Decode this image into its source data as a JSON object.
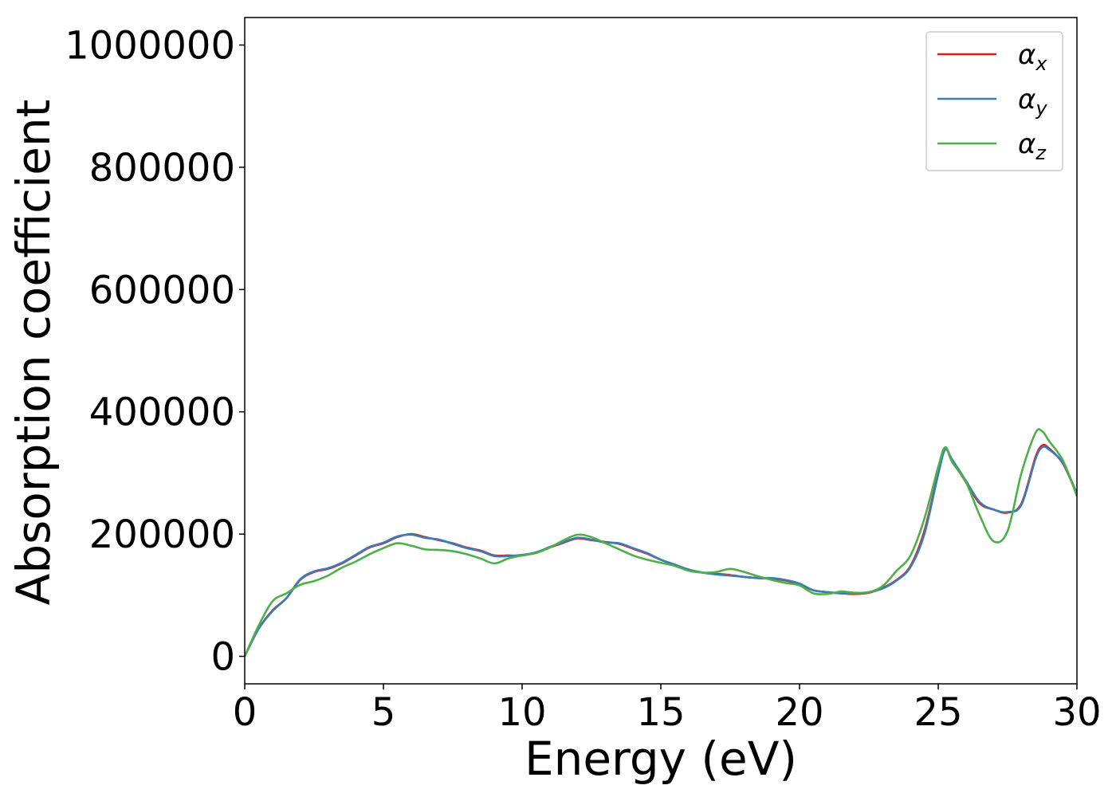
{
  "chart_data": {
    "type": "line",
    "xlabel": "Energy (eV)",
    "ylabel": "Absorption coefficient",
    "xlim": [
      0,
      30
    ],
    "ylim": [
      -45000,
      1045000
    ],
    "xticks": [
      0,
      5,
      10,
      15,
      20,
      25,
      30
    ],
    "xtick_labels": [
      "0",
      "5",
      "10",
      "15",
      "20",
      "25",
      "30"
    ],
    "yticks": [
      0,
      200000,
      400000,
      600000,
      800000,
      1000000
    ],
    "ytick_labels": [
      "0",
      "200000",
      "400000",
      "600000",
      "800000",
      "1000000"
    ],
    "grid": false,
    "legend_position": "top-right",
    "series": [
      {
        "name": "αx",
        "legend_main": "α",
        "legend_sub": "x",
        "color": "#e41a1c",
        "x": [
          0,
          0.5,
          1,
          1.5,
          2,
          2.5,
          3,
          3.5,
          4,
          4.5,
          5,
          5.5,
          6,
          6.5,
          7,
          7.5,
          8,
          8.5,
          9,
          9.5,
          10,
          10.5,
          11,
          11.5,
          12,
          12.5,
          13,
          13.5,
          14,
          14.5,
          15,
          15.5,
          16,
          16.5,
          17,
          17.5,
          18,
          18.5,
          19,
          19.5,
          20,
          20.5,
          21,
          21.5,
          22,
          22.5,
          23,
          23.5,
          24,
          24.5,
          25,
          25.25,
          25.5,
          26,
          26.5,
          27,
          27.5,
          28,
          28.5,
          28.75,
          29,
          29.5,
          30
        ],
        "y": [
          0,
          45000,
          75000,
          95000,
          125000,
          138000,
          143000,
          152000,
          165000,
          178000,
          185000,
          195000,
          200000,
          195000,
          190000,
          185000,
          178000,
          173000,
          165000,
          165000,
          165000,
          170000,
          178000,
          186000,
          193000,
          190000,
          187000,
          184000,
          176000,
          168000,
          158000,
          150000,
          142000,
          137000,
          135000,
          133000,
          130000,
          128000,
          127000,
          124000,
          118000,
          108000,
          105000,
          103000,
          102000,
          104000,
          112000,
          125000,
          148000,
          205000,
          300000,
          340000,
          320000,
          285000,
          250000,
          240000,
          235000,
          250000,
          325000,
          345000,
          340000,
          315000,
          265000
        ]
      },
      {
        "name": "αy",
        "legend_main": "α",
        "legend_sub": "y",
        "color": "#377eb8",
        "x": [
          0,
          0.5,
          1,
          1.5,
          2,
          2.5,
          3,
          3.5,
          4,
          4.5,
          5,
          5.5,
          6,
          6.5,
          7,
          7.5,
          8,
          8.5,
          9,
          9.5,
          10,
          10.5,
          11,
          11.5,
          12,
          12.5,
          13,
          13.5,
          14,
          14.5,
          15,
          15.5,
          16,
          16.5,
          17,
          17.5,
          18,
          18.5,
          19,
          19.5,
          20,
          20.5,
          21,
          21.5,
          22,
          22.5,
          23,
          23.5,
          24,
          24.5,
          25,
          25.25,
          25.5,
          26,
          26.5,
          27,
          27.5,
          28,
          28.5,
          28.75,
          29,
          29.5,
          30
        ],
        "y": [
          0,
          45000,
          74000,
          95000,
          126000,
          139000,
          144000,
          153000,
          166000,
          179000,
          186000,
          196000,
          199000,
          194000,
          191000,
          184000,
          177000,
          172000,
          164000,
          164000,
          166000,
          170000,
          179000,
          187000,
          194000,
          191000,
          186000,
          185000,
          177000,
          169000,
          158000,
          150000,
          142000,
          137000,
          134000,
          132000,
          130000,
          128000,
          128000,
          125000,
          119000,
          108000,
          105000,
          103000,
          103000,
          105000,
          111000,
          124000,
          146000,
          200000,
          298000,
          338000,
          322000,
          287000,
          252000,
          240000,
          236000,
          248000,
          322000,
          342000,
          338000,
          316000,
          266000
        ]
      },
      {
        "name": "αz",
        "legend_main": "α",
        "legend_sub": "z",
        "color": "#4daf4a",
        "x": [
          0,
          0.5,
          1,
          1.5,
          2,
          2.5,
          3,
          3.5,
          4,
          4.5,
          5,
          5.5,
          6,
          6.5,
          7,
          7.5,
          8,
          8.5,
          9,
          9.5,
          10,
          10.5,
          11,
          11.5,
          12,
          12.5,
          13,
          13.5,
          14,
          14.5,
          15,
          15.5,
          16,
          16.5,
          17,
          17.5,
          18,
          18.5,
          19,
          19.5,
          20,
          20.5,
          21,
          21.5,
          22,
          22.5,
          23,
          23.5,
          24,
          24.5,
          25,
          25.25,
          25.5,
          26,
          26.5,
          27,
          27.5,
          28,
          28.5,
          28.75,
          29,
          29.5,
          30
        ],
        "y": [
          0,
          50000,
          90000,
          103000,
          117000,
          123000,
          132000,
          145000,
          155000,
          167000,
          177000,
          185000,
          181000,
          175000,
          174000,
          172000,
          167000,
          160000,
          152000,
          160000,
          165000,
          169000,
          178000,
          190000,
          199000,
          195000,
          185000,
          175000,
          165000,
          158000,
          153000,
          148000,
          140000,
          137000,
          138000,
          143000,
          138000,
          131000,
          125000,
          120000,
          116000,
          103000,
          102000,
          106000,
          104000,
          105000,
          115000,
          140000,
          165000,
          225000,
          310000,
          342000,
          318000,
          285000,
          230000,
          188000,
          205000,
          300000,
          365000,
          368000,
          352000,
          320000,
          262000
        ]
      }
    ]
  }
}
